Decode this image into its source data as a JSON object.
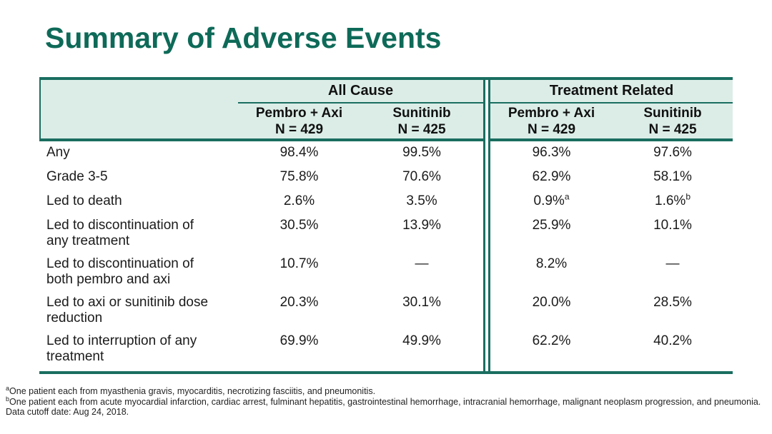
{
  "slide": {
    "title": "Summary of Adverse Events"
  },
  "colors": {
    "title_teal": "#0e6a58",
    "line_teal": "#1a6e60",
    "header_bg": "#dcede8",
    "body_text": "#1b1b1b"
  },
  "table": {
    "groups": [
      {
        "label": "All Cause"
      },
      {
        "label": "Treatment Related"
      }
    ],
    "columns": [
      {
        "name": "Pembro + Axi",
        "n": "N = 429"
      },
      {
        "name": "Sunitinib",
        "n": "N = 425"
      },
      {
        "name": "Pembro + Axi",
        "n": "N = 429"
      },
      {
        "name": "Sunitinib",
        "n": "N = 425"
      }
    ],
    "rows": [
      {
        "label": "Any",
        "values": [
          "98.4%",
          "99.5%",
          "96.3%",
          "97.6%"
        ],
        "sups": [
          "",
          "",
          "",
          ""
        ]
      },
      {
        "label": "Grade 3-5",
        "values": [
          "75.8%",
          "70.6%",
          "62.9%",
          "58.1%"
        ],
        "sups": [
          "",
          "",
          "",
          ""
        ]
      },
      {
        "label": "Led to death",
        "values": [
          "2.6%",
          "3.5%",
          "0.9%",
          "1.6%"
        ],
        "sups": [
          "",
          "",
          "a",
          "b"
        ]
      },
      {
        "label": "Led to discontinuation of\nany treatment",
        "values": [
          "30.5%",
          "13.9%",
          "25.9%",
          "10.1%"
        ],
        "sups": [
          "",
          "",
          "",
          ""
        ]
      },
      {
        "label": "Led to discontinuation of\nboth pembro and axi",
        "values": [
          "10.7%",
          "—",
          "8.2%",
          "—"
        ],
        "sups": [
          "",
          "",
          "",
          ""
        ]
      },
      {
        "label": "Led to axi or sunitinib dose\nreduction",
        "values": [
          "20.3%",
          "30.1%",
          "20.0%",
          "28.5%"
        ],
        "sups": [
          "",
          "",
          "",
          ""
        ]
      },
      {
        "label": "Led to interruption of any\ntreatment",
        "values": [
          "69.9%",
          "49.9%",
          "62.2%",
          "40.2%"
        ],
        "sups": [
          "",
          "",
          "",
          ""
        ]
      }
    ]
  },
  "footnotes": [
    {
      "marker": "a",
      "text": "One patient each from myasthenia gravis, myocarditis, necrotizing fasciitis, and pneumonitis."
    },
    {
      "marker": "b",
      "text": "One patient each from acute myocardial infarction, cardiac arrest, fulminant hepatitis, gastrointestinal hemorrhage, intracranial hemorrhage, malignant neoplasm progression, and pneumonia."
    },
    {
      "marker": "",
      "text": "Data cutoff date: Aug 24, 2018."
    }
  ]
}
